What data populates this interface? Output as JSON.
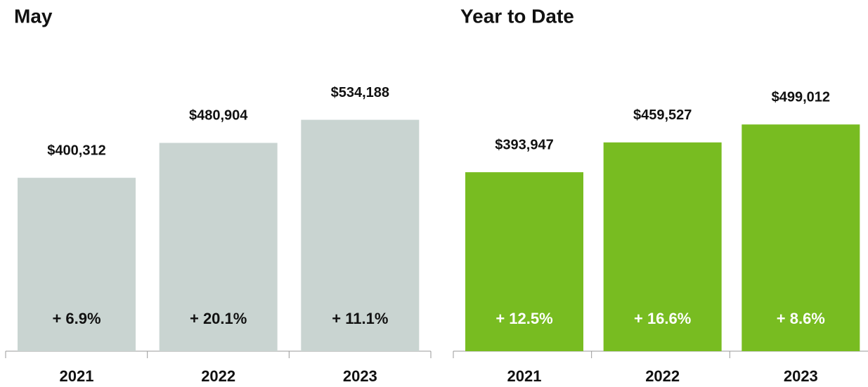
{
  "chart_data": [
    {
      "type": "bar",
      "title": "May",
      "categories": [
        "2021",
        "2022",
        "2023"
      ],
      "values": [
        400312,
        480904,
        534188
      ],
      "value_labels": [
        "$400,312",
        "$480,904",
        "$534,188"
      ],
      "annotations": [
        "+ 6.9%",
        "+ 20.1%",
        "+ 11.1%"
      ],
      "color": "#c9d4d1",
      "annotation_color": "#111111",
      "ylim": [
        0,
        600000
      ]
    },
    {
      "type": "bar",
      "title": "Year to Date",
      "categories": [
        "2021",
        "2022",
        "2023"
      ],
      "values": [
        393947,
        459527,
        499012
      ],
      "value_labels": [
        "$393,947",
        "$459,527",
        "$499,012"
      ],
      "annotations": [
        "+ 12.5%",
        "+ 16.6%",
        "+ 8.6%"
      ],
      "color": "#78bc21",
      "annotation_color": "#ffffff",
      "ylim": [
        0,
        572000
      ]
    }
  ]
}
